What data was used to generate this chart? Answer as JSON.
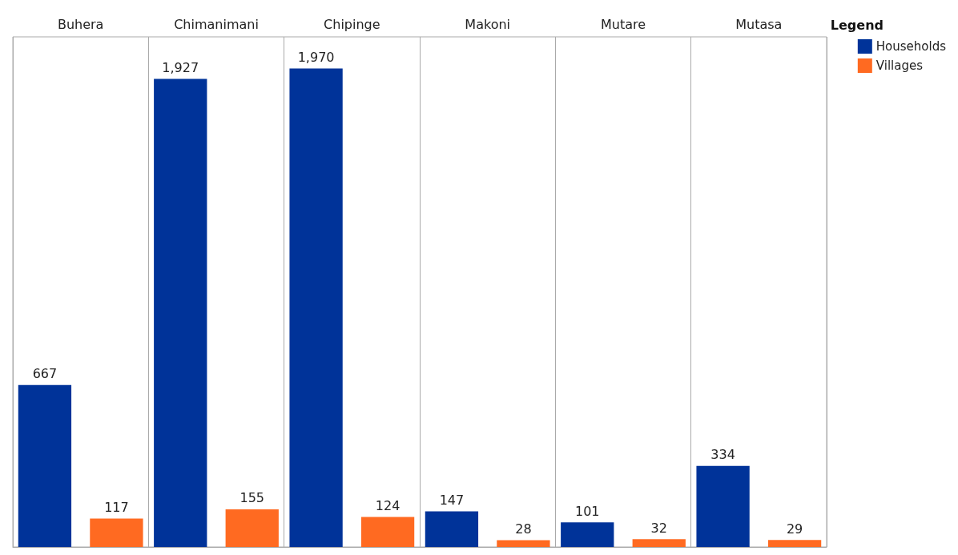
{
  "chart_data": {
    "type": "bar",
    "categories": [
      "Buhera",
      "Chimanimani",
      "Chipinge",
      "Makoni",
      "Mutare",
      "Mutasa"
    ],
    "series": [
      {
        "name": "Households",
        "color": "#003399",
        "values": [
          667,
          1927,
          1970,
          147,
          101,
          334
        ],
        "value_labels": [
          "667",
          "1,927",
          "1,970",
          "147",
          "101",
          "334"
        ]
      },
      {
        "name": "Villages",
        "color": "#ff6a21",
        "values": [
          117,
          155,
          124,
          28,
          32,
          29
        ],
        "value_labels": [
          "117",
          "155",
          "124",
          "28",
          "32",
          "29"
        ]
      }
    ],
    "legend": "top right",
    "legend_title": "Legend",
    "tick_labels": "x"
  }
}
